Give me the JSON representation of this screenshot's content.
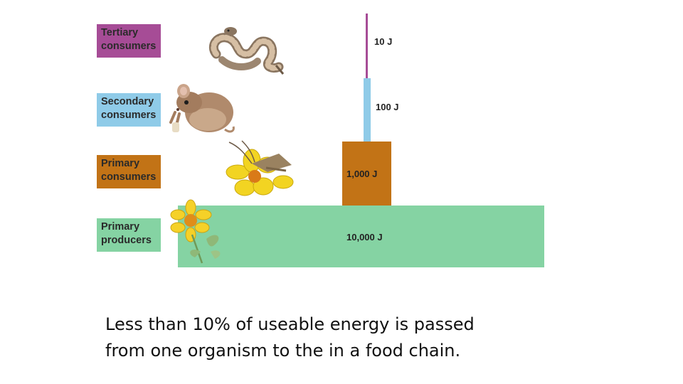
{
  "levels": [
    {
      "line1": "Tertiary",
      "line2": "consumers",
      "energy": "10 J"
    },
    {
      "line1": "Secondary",
      "line2": "consumers",
      "energy": "100 J"
    },
    {
      "line1": "Primary",
      "line2": "consumers",
      "energy": "1,000 J"
    },
    {
      "line1": "Primary",
      "line2": "producers",
      "energy": "10,000 J"
    }
  ],
  "colors": {
    "tertiary": "#a64c96",
    "secondary": "#8fcbe8",
    "primary_consumers": "#c27316",
    "producers": "#85d3a3"
  },
  "icons": [
    "snake-icon",
    "mouse-icon",
    "grasshopper-icon",
    "flower-icon",
    "producer-flower-icon"
  ],
  "caption": {
    "line1": "Less than 10% of useable energy is passed",
    "line2": "from one organism to the in a food chain."
  }
}
